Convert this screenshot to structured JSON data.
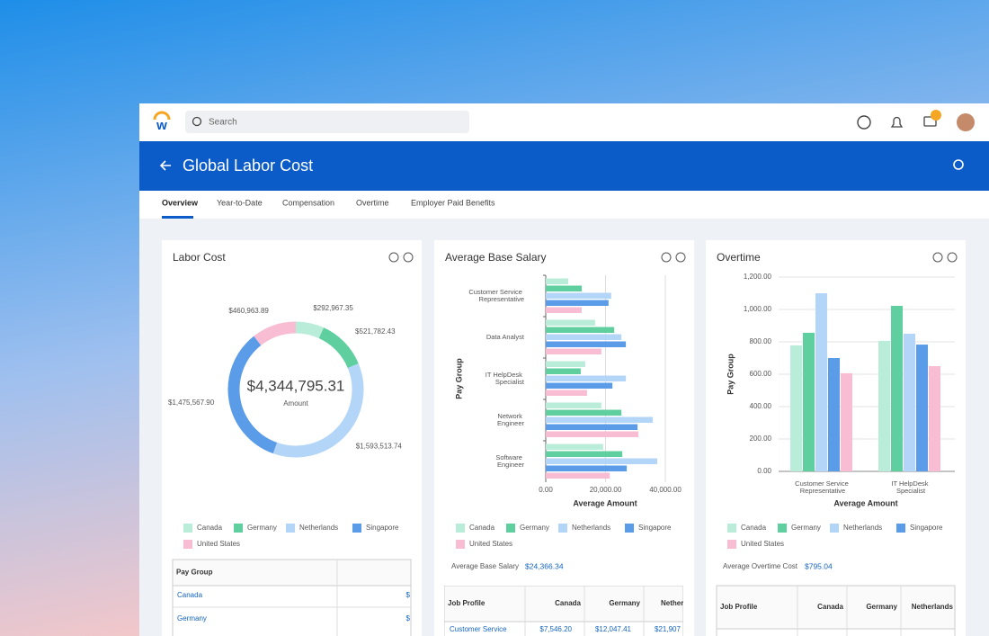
{
  "app": {
    "search_placeholder": "Search"
  },
  "page": {
    "title": "Global Labor Cost",
    "tabs": [
      "Overview",
      "Year-to-Date",
      "Compensation",
      "Overtime",
      "Employer Paid Benefits"
    ]
  },
  "panels": [
    {
      "title": "Labor Cost"
    },
    {
      "title": "Average Base Salary",
      "summary_label": "Average Base Salary",
      "summary_value": "$24,366.34"
    },
    {
      "title": "Overtime",
      "summary_label": "Average Overtime Cost",
      "summary_value": "$795.04"
    }
  ],
  "tables": [
    {
      "headers": [
        "Pay Group"
      ],
      "rows": [
        [
          "Canada",
          "$"
        ],
        [
          "Germany",
          "$"
        ]
      ]
    },
    {
      "headers": [
        "Job Profile",
        "Canada",
        "Germany",
        "Netherl"
      ],
      "rows": [
        [
          "Customer Service",
          "$7,546.20",
          "$12,047.41",
          "$21,907"
        ]
      ]
    },
    {
      "headers": [
        "Job Profile",
        "Canada",
        "Germany",
        "Netherlands"
      ],
      "rows": []
    }
  ],
  "chart_data": [
    {
      "type": "donut",
      "center_label": "$4,344,795.31",
      "center_sublabel": "Amount",
      "categories": [
        "Canada",
        "Germany",
        "Netherlands",
        "Singapore",
        "United States"
      ],
      "values": [
        292967.35,
        521782.43,
        1593513.74,
        1475567.9,
        460963.89
      ],
      "value_labels": [
        "$292,967.35",
        "$521,782.43",
        "$1,593,513.74",
        "$1,475,567.90",
        "$460,963.89"
      ],
      "colors": [
        "#b9ecd9",
        "#5fcf9f",
        "#b3d5f8",
        "#5b9ce8",
        "#f8bcd3"
      ]
    },
    {
      "type": "hbar",
      "xlabel": "Average Amount",
      "ylabel": "Pay Group",
      "categories": [
        "Customer Service Representative",
        "Data Analyst",
        "IT HelpDesk Specialist",
        "Network Engineer",
        "Software Engineer"
      ],
      "xlim": [
        0,
        40000
      ],
      "xticks": [
        {
          "value": 0,
          "label": "0.00"
        },
        {
          "value": 20000,
          "label": "20,000.00"
        },
        {
          "value": 40000,
          "label": "40,000.00"
        }
      ],
      "series": [
        {
          "name": "Canada",
          "color": "#b9ecd9",
          "values": [
            7546.2,
            16500,
            13200,
            18600,
            19200
          ]
        },
        {
          "name": "Germany",
          "color": "#5fcf9f",
          "values": [
            12047.41,
            22900,
            11700,
            25300,
            25600
          ]
        },
        {
          "name": "Netherlands",
          "color": "#b3d5f8",
          "values": [
            21907,
            25300,
            26800,
            35800,
            37300
          ]
        },
        {
          "name": "Singapore",
          "color": "#5b9ce8",
          "values": [
            21000,
            26800,
            22300,
            30700,
            27100
          ]
        },
        {
          "name": "United States",
          "color": "#f8bcd3",
          "values": [
            12000,
            18600,
            13800,
            31000,
            21400
          ]
        }
      ]
    },
    {
      "type": "bar",
      "xlabel": "Average Amount",
      "ylabel": "Pay Group",
      "categories": [
        "Customer Service Representative",
        "IT HelpDesk Specialist"
      ],
      "ylim": [
        0,
        1200
      ],
      "yticks": [
        {
          "value": 0,
          "label": "0.00"
        },
        {
          "value": 200,
          "label": "200.00"
        },
        {
          "value": 400,
          "label": "400.00"
        },
        {
          "value": 600,
          "label": "600.00"
        },
        {
          "value": 800,
          "label": "800.00"
        },
        {
          "value": 1000,
          "label": "1,000.00"
        },
        {
          "value": 1200,
          "label": "1,200.00"
        }
      ],
      "series": [
        {
          "name": "Canada",
          "color": "#b9ecd9",
          "values": [
            778,
            806
          ]
        },
        {
          "name": "Germany",
          "color": "#5fcf9f",
          "values": [
            856,
            1022
          ]
        },
        {
          "name": "Netherlands",
          "color": "#b3d5f8",
          "values": [
            1100,
            850
          ]
        },
        {
          "name": "Singapore",
          "color": "#5b9ce8",
          "values": [
            700,
            783
          ]
        },
        {
          "name": "United States",
          "color": "#f8bcd3",
          "values": [
            606,
            650
          ]
        }
      ]
    }
  ]
}
